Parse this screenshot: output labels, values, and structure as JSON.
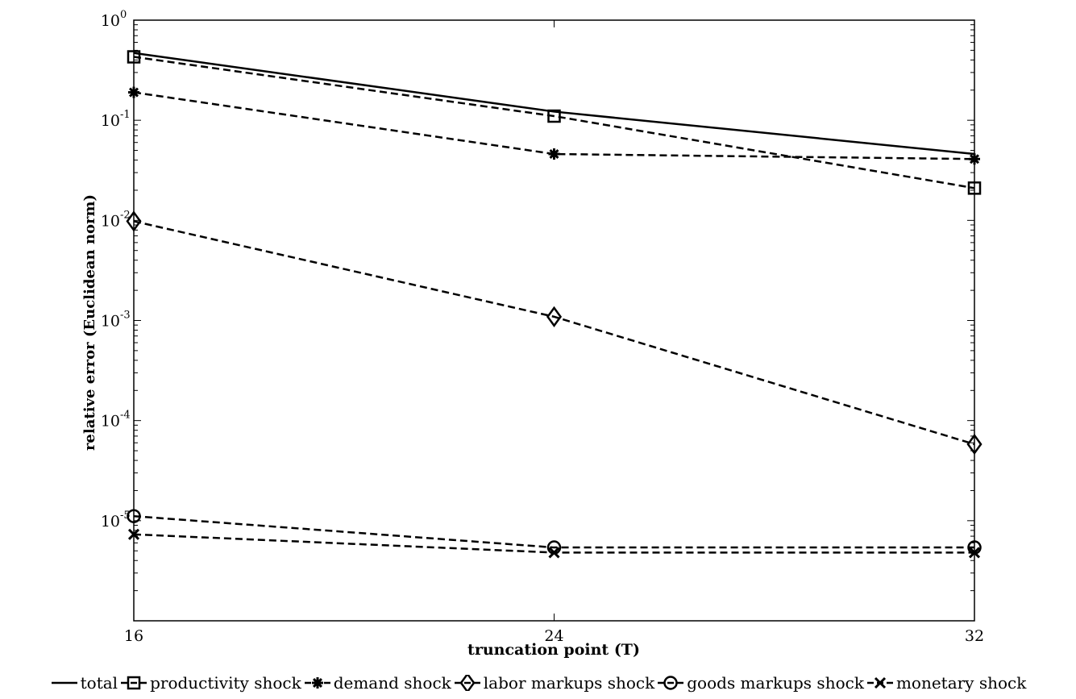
{
  "chart_data": {
    "type": "line",
    "title": "",
    "xlabel": "truncation point (T)",
    "ylabel": "relative error (Euclidean norm)",
    "x": [
      16,
      24,
      32
    ],
    "xlim": [
      16,
      32
    ],
    "ylim": [
      1e-06,
      1
    ],
    "yscale": "log",
    "x_ticks": [
      "16",
      "24",
      "32"
    ],
    "y_ticks": [
      {
        "base": "10",
        "exp": "0",
        "value": 1
      },
      {
        "base": "10",
        "exp": "-1",
        "value": 0.1
      },
      {
        "base": "10",
        "exp": "-2",
        "value": 0.01
      },
      {
        "base": "10",
        "exp": "-3",
        "value": 0.001
      },
      {
        "base": "10",
        "exp": "-4",
        "value": 0.0001
      },
      {
        "base": "10",
        "exp": "-5",
        "value": 1e-05
      }
    ],
    "grid": false,
    "legend_position": "bottom",
    "series": [
      {
        "name": "total",
        "values": [
          0.47,
          0.122,
          0.046
        ],
        "line": "solid",
        "marker": "none"
      },
      {
        "name": "productivity shock",
        "values": [
          0.43,
          0.11,
          0.021
        ],
        "line": "dashed",
        "marker": "square"
      },
      {
        "name": "demand shock",
        "values": [
          0.19,
          0.046,
          0.041
        ],
        "line": "dashed",
        "marker": "asterisk"
      },
      {
        "name": "labor markups shock",
        "values": [
          0.0098,
          0.00109,
          5.8e-05
        ],
        "line": "dashed",
        "marker": "diamond"
      },
      {
        "name": "goods markups shock",
        "values": [
          1.11e-05,
          5.4e-06,
          5.4e-06
        ],
        "line": "dashed",
        "marker": "circle"
      },
      {
        "name": "monetary shock",
        "values": [
          7.3e-06,
          4.8e-06,
          4.8e-06
        ],
        "line": "dashed",
        "marker": "x"
      }
    ]
  }
}
